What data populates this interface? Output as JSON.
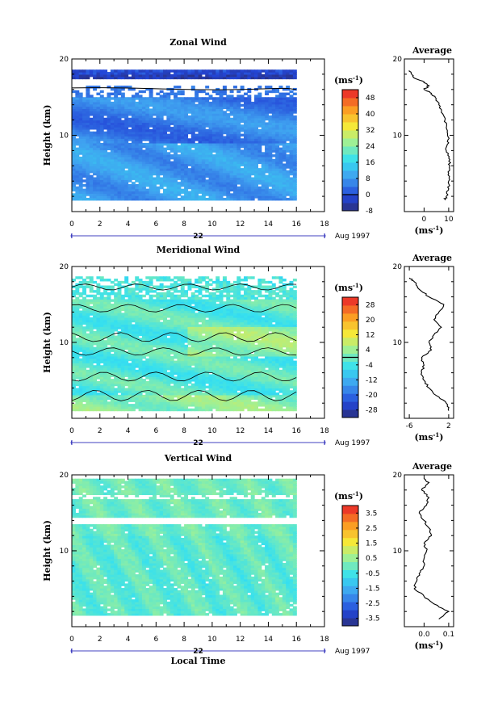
{
  "chart_data": [
    {
      "type": "heatmap",
      "title": "Zonal Wind",
      "ylabel": "Height (km)",
      "xlim": [
        0,
        18
      ],
      "ylim": [
        0,
        20
      ],
      "x_ticks": [
        "0",
        "2",
        "4",
        "6",
        "8",
        "10",
        "12",
        "14",
        "16",
        "18"
      ],
      "y_ticks": [
        "20",
        "10"
      ],
      "date_label": "22",
      "month_label": "Aug 1997",
      "data_x_range": [
        0,
        16
      ],
      "data_y_range": [
        1.5,
        18.5
      ],
      "colorbar": {
        "unit": "(ms",
        "unit_sup": "-1",
        "ticks": [
          "48",
          "40",
          "32",
          "24",
          "16",
          "8",
          "0",
          "-8"
        ],
        "range": [
          -8,
          52
        ],
        "contour_level": 0
      },
      "profile_panel": {
        "title": "Average",
        "x_ticks": [
          "0",
          "10"
        ],
        "xlim": [
          -8,
          12
        ],
        "xlabel": "(ms",
        "xlabel_sup": "-1",
        "y_ticks": [
          "20",
          "10"
        ],
        "height": [
          1.5,
          2,
          3,
          4,
          5,
          6,
          7,
          8,
          9,
          10,
          11,
          12,
          13,
          14,
          15,
          15.5,
          16,
          16.5,
          17,
          17.5,
          18,
          18.5
        ],
        "value": [
          8.5,
          9,
          10,
          10,
          10,
          10.5,
          10,
          9,
          10,
          9.5,
          9,
          8.5,
          7,
          6,
          4.5,
          3,
          0,
          2,
          0,
          -4,
          -5,
          -6
        ]
      }
    },
    {
      "type": "heatmap",
      "title": "Meridional Wind",
      "ylabel": "Height (km)",
      "xlim": [
        0,
        18
      ],
      "ylim": [
        0,
        20
      ],
      "x_ticks": [
        "0",
        "2",
        "4",
        "6",
        "8",
        "10",
        "12",
        "14",
        "16",
        "18"
      ],
      "y_ticks": [
        "20",
        "10"
      ],
      "date_label": "22",
      "month_label": "Aug 1997",
      "data_x_range": [
        0,
        16
      ],
      "data_y_range": [
        1,
        18.5
      ],
      "colorbar": {
        "unit": "(ms",
        "unit_sup": "-1",
        "ticks": [
          "28",
          "20",
          "12",
          "4",
          "-4",
          "-12",
          "-20",
          "-28"
        ],
        "range": [
          -32,
          32
        ],
        "contour_level": 0
      },
      "profile_panel": {
        "title": "Average",
        "x_ticks": [
          "-6",
          "2"
        ],
        "xlim": [
          -7,
          3
        ],
        "xlabel": "(ms",
        "xlabel_sup": "-1",
        "y_ticks": [
          "20",
          "10"
        ],
        "height": [
          1,
          2,
          3,
          4,
          5,
          6,
          7,
          8,
          9,
          10,
          11,
          12,
          13,
          14,
          15,
          16,
          17,
          18,
          18.5
        ],
        "value": [
          2,
          1.5,
          -0.5,
          -2,
          -3,
          -3.5,
          -3,
          -3.5,
          -1.5,
          -2,
          -1,
          0.5,
          -1,
          0,
          1,
          -2,
          -4,
          -5,
          -6
        ]
      }
    },
    {
      "type": "heatmap",
      "title": "Vertical Wind",
      "ylabel": "Height (km)",
      "xlabel": "Local Time",
      "xlim": [
        0,
        18
      ],
      "ylim": [
        0,
        20
      ],
      "x_ticks": [
        "0",
        "2",
        "4",
        "6",
        "8",
        "10",
        "12",
        "14",
        "16",
        "18"
      ],
      "y_ticks": [
        "20",
        "10"
      ],
      "date_label": "22",
      "month_label": "Aug 1997",
      "data_x_range": [
        0,
        16
      ],
      "data_y_range": [
        1.5,
        19.5
      ],
      "colorbar": {
        "unit": "(ms",
        "unit_sup": "-1",
        "ticks": [
          "3.5",
          "2.5",
          "1.5",
          "0.5",
          "-0.5",
          "-1.5",
          "-2.5",
          "-3.5"
        ],
        "range": [
          -4,
          4
        ]
      },
      "profile_panel": {
        "title": "Average",
        "x_ticks": [
          "0.0",
          "0.1"
        ],
        "xlim": [
          -0.08,
          0.12
        ],
        "xlabel": "(ms",
        "xlabel_sup": "-1",
        "y_ticks": [
          "20",
          "10"
        ],
        "height": [
          1,
          2,
          3,
          4,
          5,
          6,
          7,
          8,
          9,
          10,
          11,
          12,
          13,
          14,
          15,
          16,
          17,
          18,
          19,
          19.5
        ],
        "value": [
          0.06,
          0.1,
          0.04,
          0.0,
          -0.04,
          -0.03,
          -0.02,
          0.0,
          0.0,
          0.01,
          0.0,
          0.03,
          0.02,
          0.0,
          -0.02,
          0.01,
          0.02,
          -0.01,
          0.02,
          0.0
        ]
      }
    }
  ]
}
